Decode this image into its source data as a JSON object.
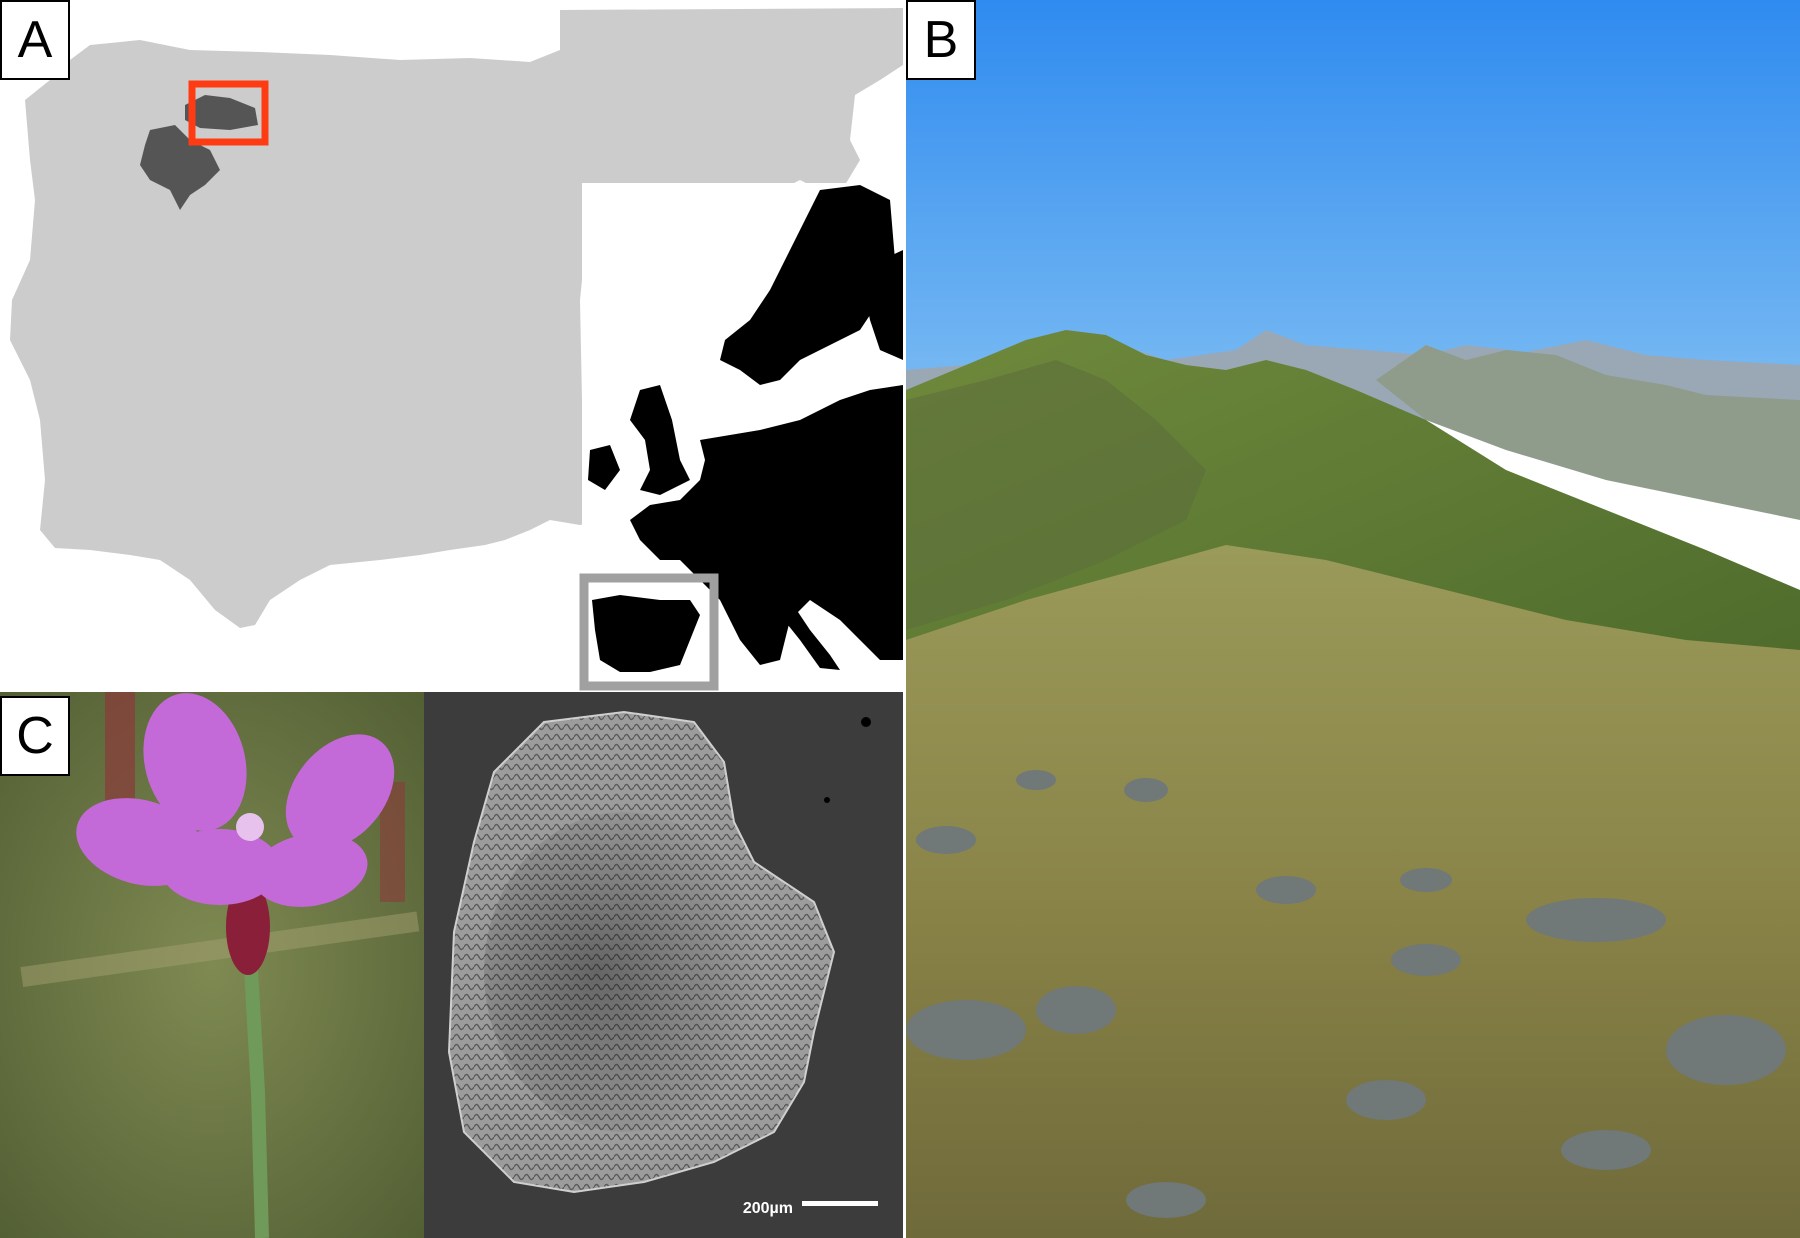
{
  "figure": {
    "panel_a": {
      "label": "A"
    },
    "panel_b": {
      "label": "B"
    },
    "panel_c": {
      "label": "C",
      "scale_bar_text": "200µm"
    },
    "colors": {
      "land_gray": "#cccccc",
      "europe_black": "#000000",
      "range_highlight": "#ff3b14",
      "inset_box": "#a0a0a0",
      "sky_blue": "#3e95f0",
      "flower_pink": "#c46ad8"
    }
  }
}
